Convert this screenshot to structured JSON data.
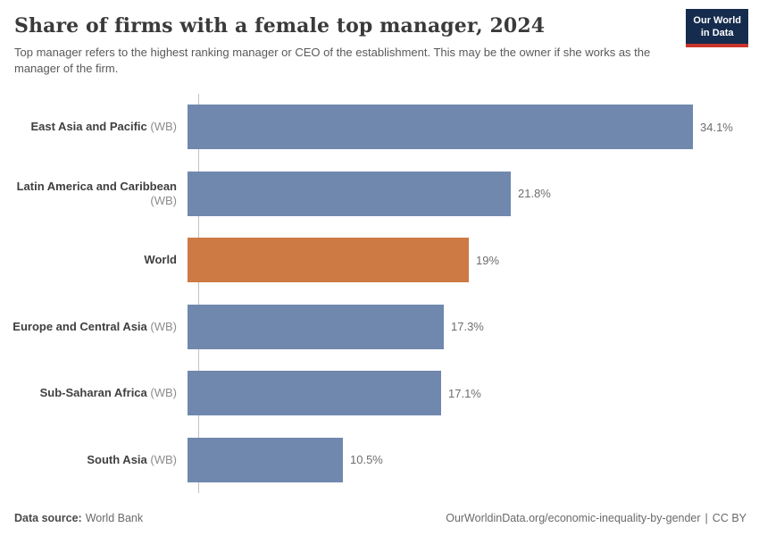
{
  "header": {
    "title": "Share of firms with a female top manager, 2024",
    "subtitle": "Top manager refers to the highest ranking manager or CEO of the establishment. This may be the owner if she works as the manager of the firm."
  },
  "logo": {
    "line1": "Our World",
    "line2": "in Data",
    "background_color": "#152c4e",
    "stripe_color": "#c9342c"
  },
  "chart_data": {
    "type": "bar",
    "orientation": "horizontal",
    "title": "Share of firms with a female top manager, 2024",
    "unit": "%",
    "categories": [
      "East Asia and Pacific",
      "Latin America and Caribbean",
      "World",
      "Europe and Central Asia",
      "Sub-Saharan Africa",
      "South Asia"
    ],
    "qualifiers": [
      "(WB)",
      "(WB)",
      "",
      "(WB)",
      "(WB)",
      "(WB)"
    ],
    "values": [
      34.1,
      21.8,
      19,
      17.3,
      17.1,
      10.5
    ],
    "value_labels": [
      "34.1%",
      "21.8%",
      "19%",
      "17.3%",
      "17.1%",
      "10.5%"
    ],
    "bar_colors": [
      "#7088ae",
      "#7088ae",
      "#cd7a44",
      "#7088ae",
      "#7088ae",
      "#7088ae"
    ],
    "highlight_color": "#cd7a44",
    "default_bar_color": "#7088ae",
    "xlim": [
      0,
      34.1
    ],
    "grid": false,
    "legend": false
  },
  "footer": {
    "data_source_label": "Data source:",
    "data_source_value": "World Bank",
    "url": "OurWorldinData.org/economic-inequality-by-gender",
    "separator": "|",
    "license": "CC BY"
  }
}
